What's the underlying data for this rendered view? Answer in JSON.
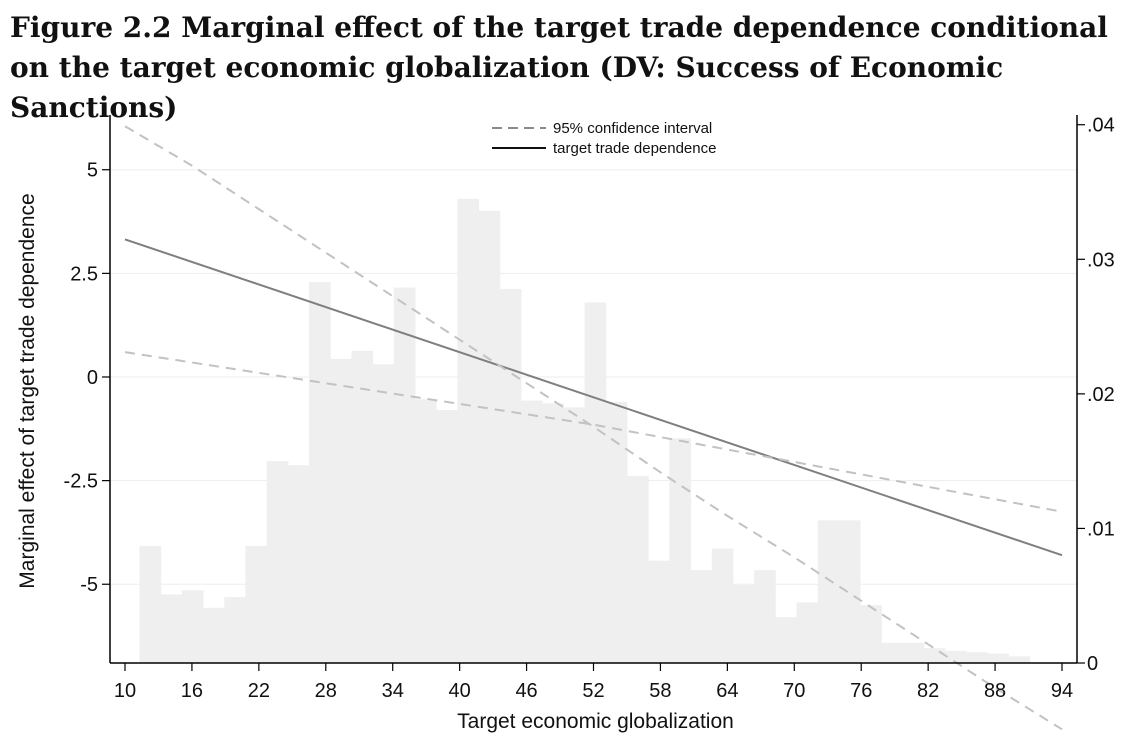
{
  "figure_title": "Figure 2.2 Marginal effect of the target trade dependence conditional on the target economic globalization (DV: Success of Economic Sanctions)",
  "colors": {
    "histogram": "#efefef",
    "effect_line": "#7f7f7f",
    "ci_line": "#c2c2c2",
    "gridline": "#eeeeee",
    "axis": "#000000"
  },
  "chart_data": {
    "type": "line",
    "xlabel": "Target economic globalization",
    "ylabel": "Marginal effect of target trade dependence",
    "xlim": [
      10,
      94
    ],
    "ylim": [
      -6.9,
      6.2
    ],
    "y2lim": [
      0,
      0.0405
    ],
    "x_ticks": [
      "10",
      "16",
      "22",
      "28",
      "34",
      "40",
      "46",
      "52",
      "58",
      "64",
      "70",
      "76",
      "82",
      "88",
      "94"
    ],
    "y_ticks": [
      "5",
      "2.5",
      "0",
      "-2.5",
      "-5"
    ],
    "y2_ticks": [
      ".04",
      ".03",
      ".02",
      ".01",
      "0"
    ],
    "legend": [
      "95% confidence interval",
      "target trade dependence"
    ],
    "legend_position": "top-center",
    "grid": true,
    "series": [
      {
        "name": "target trade dependence",
        "style": "solid",
        "x": [
          10,
          94
        ],
        "y": [
          3.32,
          -4.3
        ]
      },
      {
        "name": "95% confidence interval",
        "style": "dashed",
        "x": [
          10,
          16,
          22,
          28,
          34,
          40,
          46,
          52,
          58,
          64,
          70,
          76,
          82,
          88,
          94
        ],
        "y": [
          6.05,
          5.1,
          4.05,
          3.0,
          1.95,
          0.9,
          -0.15,
          -1.2,
          -2.3,
          -3.35,
          -4.35,
          -5.4,
          -6.45,
          -7.5,
          -8.5
        ]
      },
      {
        "name": "95% confidence interval",
        "style": "dashed",
        "x": [
          10,
          16,
          22,
          28,
          34,
          40,
          46,
          52,
          58,
          64,
          70,
          76,
          82,
          88,
          94
        ],
        "y": [
          0.6,
          0.35,
          0.1,
          -0.15,
          -0.4,
          -0.65,
          -0.9,
          -1.15,
          -1.45,
          -1.75,
          -2.05,
          -2.35,
          -2.65,
          -2.95,
          -3.25
        ]
      }
    ],
    "histogram": {
      "axis": "right",
      "bin_edges": [
        11.3,
        13.2,
        15.1,
        17.0,
        18.9,
        20.8,
        22.7,
        24.6,
        26.5,
        28.4,
        30.3,
        32.2,
        34.1,
        36.0,
        37.9,
        39.8,
        41.7,
        43.6,
        45.5,
        47.4,
        49.3,
        51.2,
        53.1,
        55.0,
        56.9,
        58.8,
        60.7,
        62.6,
        64.5,
        66.4,
        68.3,
        70.2,
        72.1,
        74.0,
        75.9,
        77.8,
        79.7,
        81.6,
        83.5,
        85.4,
        87.3,
        89.2,
        91.1
      ],
      "densities": [
        0.0087,
        0.0051,
        0.0054,
        0.0041,
        0.0049,
        0.0087,
        0.015,
        0.0147,
        0.0283,
        0.0226,
        0.0232,
        0.0222,
        0.0279,
        0.0196,
        0.0188,
        0.0345,
        0.0336,
        0.0278,
        0.0195,
        0.0193,
        0.019,
        0.0268,
        0.0194,
        0.0139,
        0.0076,
        0.0167,
        0.0069,
        0.0085,
        0.0058,
        0.0069,
        0.0034,
        0.0045,
        0.0106,
        0.0106,
        0.0043,
        0.0015,
        0.0015,
        0.0011,
        0.0009,
        0.0008,
        0.0007,
        0.0005
      ]
    }
  }
}
